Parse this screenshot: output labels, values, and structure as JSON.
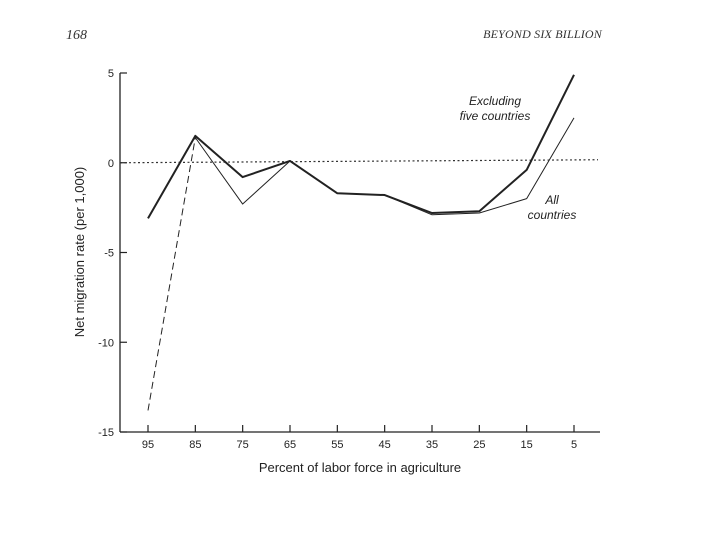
{
  "page": {
    "number": "168",
    "running_head": "BEYOND SIX BILLION"
  },
  "chart_data": {
    "type": "line",
    "title": "",
    "xlabel": "Percent of labor force in agriculture",
    "ylabel": "Net migration rate (per 1,000)",
    "x": [
      95,
      85,
      75,
      65,
      55,
      45,
      35,
      25,
      15,
      5
    ],
    "x_tick_labels": [
      "95",
      "85",
      "75",
      "65",
      "55",
      "45",
      "35",
      "25",
      "15",
      "5"
    ],
    "x_reversed": true,
    "ylim": [
      -15,
      5
    ],
    "y_ticks": [
      5,
      0,
      -5,
      -10,
      -15
    ],
    "y_tick_labels": [
      "5",
      "0",
      "-5",
      "-10",
      "-15"
    ],
    "reference_line": {
      "y": 0,
      "style": "dotted"
    },
    "grid": false,
    "series": [
      {
        "name": "Excluding five countries",
        "label_lines": [
          "Excluding",
          "five countries"
        ],
        "label_position": "upper-right",
        "style": "solid-thick",
        "color": "#222222",
        "values": [
          -3.1,
          1.5,
          -0.8,
          0.1,
          -1.7,
          -1.8,
          -2.8,
          -2.7,
          -0.4,
          4.9
        ]
      },
      {
        "name": "All countries",
        "label_lines": [
          "All",
          "countries"
        ],
        "label_position": "right-below",
        "style": "thin-dashed-first-segment",
        "color": "#222222",
        "values": [
          -13.8,
          1.4,
          -2.3,
          0.1,
          -1.7,
          -1.8,
          -2.9,
          -2.8,
          -2.0,
          2.5
        ]
      }
    ]
  }
}
